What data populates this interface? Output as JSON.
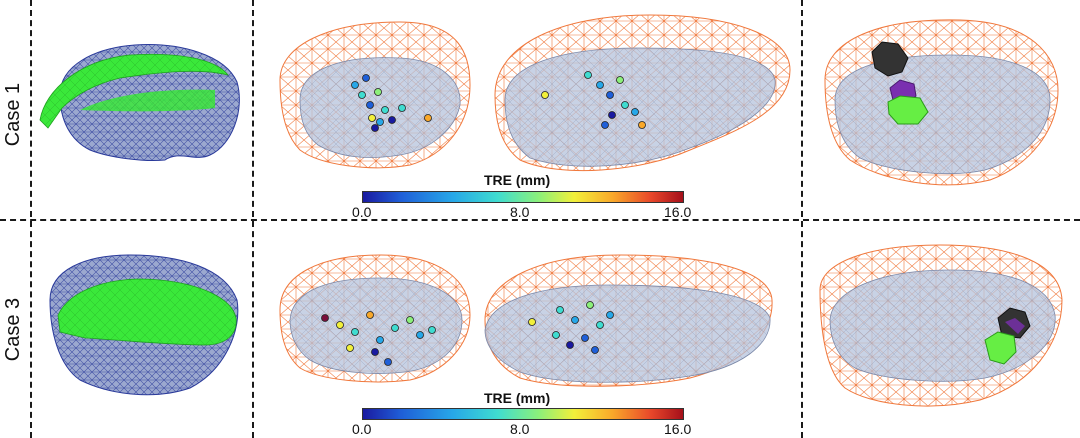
{
  "rows": [
    {
      "label": "Case 1"
    },
    {
      "label": "Case 3"
    }
  ],
  "colorbar": {
    "title": "TRE (mm)",
    "ticks": [
      "0.0",
      "8.0",
      "16.0"
    ],
    "colors": [
      "#1a1aa0",
      "#27a7e8",
      "#3fdcd0",
      "#8cf07a",
      "#f2f03a",
      "#f9a82a",
      "#e8472a",
      "#a40f1a"
    ]
  },
  "colors": {
    "wire_blue": "#2a3a9a",
    "surface_green": "#33e633",
    "wire_orange": "#f0783c",
    "organ_fill": "#9fb0d0",
    "tumor_black": "#333333",
    "tumor_purple": "#7a2fb0",
    "tumor_green": "#66ee44"
  }
}
